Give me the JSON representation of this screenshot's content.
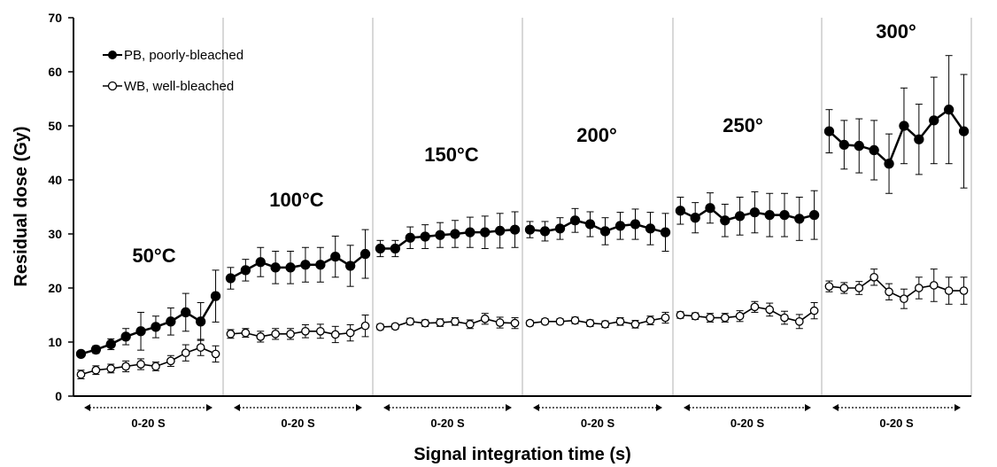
{
  "chart_data": {
    "type": "line",
    "xlabel": "Signal integration time (s)",
    "ylabel": "Residual  dose  (Gy)",
    "ylim": [
      0,
      70
    ],
    "yticks": [
      0,
      10,
      20,
      30,
      40,
      50,
      60,
      70
    ],
    "grid": "vertical panel separators",
    "legend_position": "top-left",
    "legend": [
      {
        "label": "PB, poorly-bleached",
        "marker": "filled circle"
      },
      {
        "label": "WB, well-bleached",
        "marker": "open circle"
      }
    ],
    "range_label": "0-20 S",
    "panels": [
      {
        "label": "50°C",
        "series": [
          {
            "name": "PB, poorly-bleached",
            "values": [
              7.8,
              8.6,
              9.6,
              11.0,
              12.0,
              12.8,
              13.8,
              15.5,
              13.8,
              18.5
            ],
            "errors": [
              0.5,
              0.7,
              1.0,
              1.5,
              3.5,
              2.0,
              2.5,
              3.5,
              3.5,
              4.8
            ]
          },
          {
            "name": "WB, well-bleached",
            "values": [
              4.0,
              4.8,
              5.1,
              5.5,
              5.9,
              5.5,
              6.5,
              8.0,
              9.0,
              7.8
            ],
            "errors": [
              0.8,
              0.8,
              0.8,
              1.0,
              1.0,
              0.8,
              1.0,
              1.5,
              1.5,
              1.5
            ]
          }
        ]
      },
      {
        "label": "100°C",
        "series": [
          {
            "name": "PB, poorly-bleached",
            "values": [
              21.8,
              23.3,
              24.8,
              23.8,
              23.8,
              24.3,
              24.3,
              25.8,
              24.1,
              26.3
            ],
            "errors": [
              2.0,
              2.0,
              2.7,
              3.0,
              3.0,
              3.2,
              3.2,
              3.8,
              3.8,
              4.5
            ]
          },
          {
            "name": "WB, well-bleached",
            "values": [
              11.5,
              11.7,
              11.0,
              11.5,
              11.5,
              12.0,
              12.0,
              11.4,
              11.7,
              13.0
            ],
            "errors": [
              0.8,
              0.8,
              1.0,
              1.0,
              1.0,
              1.2,
              1.3,
              1.5,
              1.5,
              2.0
            ]
          }
        ]
      },
      {
        "label": "150°C",
        "series": [
          {
            "name": "PB, poorly-bleached",
            "values": [
              27.3,
              27.3,
              29.3,
              29.5,
              29.8,
              30.0,
              30.3,
              30.3,
              30.6,
              30.8
            ],
            "errors": [
              1.5,
              1.5,
              2.0,
              2.2,
              2.3,
              2.5,
              2.8,
              3.0,
              3.2,
              3.3
            ]
          },
          {
            "name": "WB, well-bleached",
            "values": [
              12.8,
              12.9,
              13.8,
              13.5,
              13.6,
              13.8,
              13.3,
              14.3,
              13.6,
              13.5
            ],
            "errors": [
              0.5,
              0.5,
              0.6,
              0.6,
              0.7,
              0.7,
              0.8,
              1.0,
              1.0,
              1.0
            ]
          }
        ]
      },
      {
        "label": "200°",
        "series": [
          {
            "name": "PB, poorly-bleached",
            "values": [
              30.8,
              30.5,
              31.0,
              32.5,
              31.8,
              30.5,
              31.5,
              31.8,
              31.0,
              30.3
            ],
            "errors": [
              1.5,
              1.8,
              2.0,
              2.2,
              2.3,
              2.5,
              2.5,
              2.8,
              3.0,
              3.5
            ]
          },
          {
            "name": "WB, well-bleached",
            "values": [
              13.5,
              13.8,
              13.8,
              14.0,
              13.5,
              13.3,
              13.8,
              13.3,
              14.0,
              14.5
            ],
            "errors": [
              0.5,
              0.5,
              0.5,
              0.6,
              0.6,
              0.6,
              0.7,
              0.7,
              0.8,
              1.0
            ]
          }
        ]
      },
      {
        "label": "250°",
        "series": [
          {
            "name": "PB, poorly-bleached",
            "values": [
              34.3,
              33.0,
              34.8,
              32.5,
              33.3,
              34.0,
              33.5,
              33.5,
              32.8,
              33.5
            ],
            "errors": [
              2.5,
              2.8,
              2.8,
              3.0,
              3.5,
              3.8,
              4.0,
              4.0,
              4.0,
              4.5
            ]
          },
          {
            "name": "WB, well-bleached",
            "values": [
              15.0,
              14.8,
              14.5,
              14.5,
              14.8,
              16.5,
              16.0,
              14.5,
              13.8,
              15.8
            ],
            "errors": [
              0.6,
              0.6,
              0.8,
              0.8,
              1.0,
              1.0,
              1.2,
              1.2,
              1.3,
              1.5
            ]
          }
        ]
      },
      {
        "label": "300°",
        "series": [
          {
            "name": "PB, poorly-bleached",
            "values": [
              49.0,
              46.5,
              46.3,
              45.5,
              43.0,
              50.0,
              47.5,
              51.0,
              53.0,
              49.0
            ],
            "errors": [
              4.0,
              4.5,
              5.0,
              5.5,
              5.5,
              7.0,
              6.5,
              8.0,
              10.0,
              10.5
            ]
          },
          {
            "name": "WB, well-bleached",
            "values": [
              20.3,
              20.0,
              20.0,
              22.0,
              19.3,
              18.0,
              20.0,
              20.5,
              19.5,
              19.5
            ],
            "errors": [
              1.0,
              1.0,
              1.2,
              1.5,
              1.5,
              1.8,
              2.0,
              3.0,
              2.5,
              2.5
            ]
          }
        ]
      }
    ]
  }
}
